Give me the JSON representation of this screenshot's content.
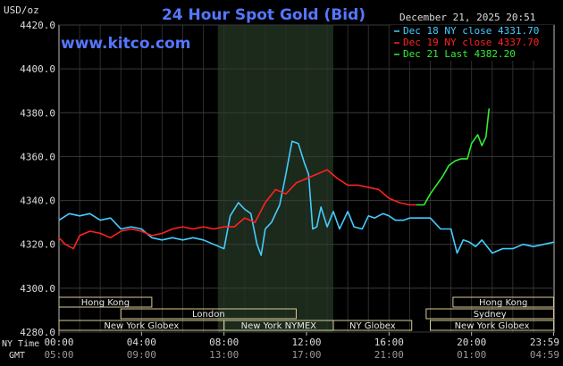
{
  "chart_data": {
    "type": "line",
    "title": "24 Hour Spot Gold (Bid)",
    "ylabel": "USD/oz",
    "brand": "www.kitco.com",
    "timestamp": "December 21, 2025 20:51",
    "ylim": [
      4280,
      4420
    ],
    "yticks": [
      "4420.0",
      "4400.0",
      "4380.0",
      "4360.0",
      "4340.0",
      "4320.0",
      "4300.0",
      "4280.0"
    ],
    "ytick_values": [
      4420,
      4400,
      4380,
      4360,
      4340,
      4320,
      4300,
      4280
    ],
    "xlim": [
      0,
      24
    ],
    "x_axis_label_ny": "NY Time",
    "x_axis_label_gmt": "GMT",
    "xticks_ny": [
      "00:00",
      "04:00",
      "08:00",
      "12:00",
      "16:00",
      "20:00",
      "23:59"
    ],
    "xticks_gmt": [
      "05:00",
      "09:00",
      "13:00",
      "17:00",
      "21:00",
      "01:00",
      "04:59"
    ],
    "xtick_hours": [
      0,
      4,
      8,
      12,
      16,
      20,
      23.98
    ],
    "grid": true,
    "legend_position": "top-right",
    "highlight_band": [
      7.7,
      13.3
    ],
    "series": [
      {
        "name": "Dec 18 NY close 4331.70",
        "color": "#44ccff",
        "x": [
          0,
          0.5,
          1,
          1.5,
          2,
          2.5,
          3,
          3.5,
          4,
          4.5,
          5,
          5.5,
          6,
          6.5,
          7,
          7.5,
          8,
          8.3,
          8.7,
          9,
          9.3,
          9.6,
          9.8,
          10,
          10.3,
          10.7,
          11,
          11.3,
          11.6,
          11.9,
          12.1,
          12.3,
          12.5,
          12.7,
          13,
          13.3,
          13.6,
          14,
          14.3,
          14.7,
          15,
          15.3,
          15.7,
          16,
          16.3,
          16.7,
          17,
          17.3,
          17.7,
          18,
          18.5,
          19,
          19.3,
          19.6,
          19.9,
          20.2,
          20.5,
          21,
          21.5,
          22,
          22.5,
          23,
          23.5,
          23.98
        ],
        "values": [
          4331,
          4334,
          4333,
          4334,
          4331,
          4332,
          4327,
          4328,
          4327,
          4323,
          4322,
          4323,
          4322,
          4323,
          4322,
          4320,
          4318,
          4333,
          4339,
          4336,
          4334,
          4320,
          4315,
          4327,
          4330,
          4338,
          4352,
          4367,
          4366,
          4357,
          4352,
          4327,
          4328,
          4337,
          4328,
          4335,
          4327,
          4335,
          4328,
          4327,
          4333,
          4332,
          4334,
          4333,
          4331,
          4331,
          4332,
          4332,
          4332,
          4332,
          4327,
          4327,
          4316,
          4322,
          4321,
          4319,
          4322,
          4316,
          4318,
          4318,
          4320,
          4319,
          4320,
          4321
        ]
      },
      {
        "name": "Dec 19 NY close 4337.70",
        "color": "#ff2222",
        "x": [
          0,
          0.3,
          0.7,
          1,
          1.5,
          2,
          2.5,
          3,
          3.5,
          4,
          4.5,
          5,
          5.5,
          6,
          6.5,
          7,
          7.5,
          8,
          8.5,
          9,
          9.5,
          10,
          10.5,
          11,
          11.5,
          12,
          12.5,
          13,
          13.5,
          14,
          14.5,
          15,
          15.5,
          16,
          16.5,
          17,
          17.33
        ],
        "values": [
          4323,
          4320,
          4318,
          4324,
          4326,
          4325,
          4323,
          4326,
          4327,
          4326,
          4324,
          4325,
          4327,
          4328,
          4327,
          4328,
          4327,
          4328,
          4328,
          4332,
          4330,
          4339,
          4345,
          4343,
          4348,
          4350,
          4352,
          4354,
          4350,
          4347,
          4347,
          4346,
          4345,
          4341,
          4339,
          4338,
          4338
        ]
      },
      {
        "name": "Dec 21 Last 4382.20",
        "color": "#33ee33",
        "x": [
          17.33,
          17.7,
          18,
          18.3,
          18.6,
          18.9,
          19.2,
          19.5,
          19.8,
          20.0,
          20.3,
          20.5,
          20.7,
          20.85
        ],
        "values": [
          4338,
          4338,
          4343,
          4347,
          4351,
          4356,
          4358,
          4359,
          4359,
          4366,
          4370,
          4365,
          4369,
          4382
        ]
      }
    ],
    "sessions": [
      {
        "name": "Hong Kong",
        "start": 0,
        "end": 4.5,
        "row": 0
      },
      {
        "name": "London",
        "start": 3,
        "end": 11.5,
        "row": 1
      },
      {
        "name": "New York Globex",
        "start": 0,
        "end": 8,
        "row": 2
      },
      {
        "name": "New York NYMEX",
        "start": 8,
        "end": 13.3,
        "row": 2
      },
      {
        "name": "NY Globex",
        "start": 13.3,
        "end": 17.1,
        "row": 2
      },
      {
        "name": "Hong Kong",
        "start": 19.1,
        "end": 23.98,
        "row": 0
      },
      {
        "name": "Sydney",
        "start": 17.8,
        "end": 23.98,
        "row": 1
      },
      {
        "name": "New York Globex",
        "start": 18,
        "end": 23.98,
        "row": 2
      }
    ]
  }
}
